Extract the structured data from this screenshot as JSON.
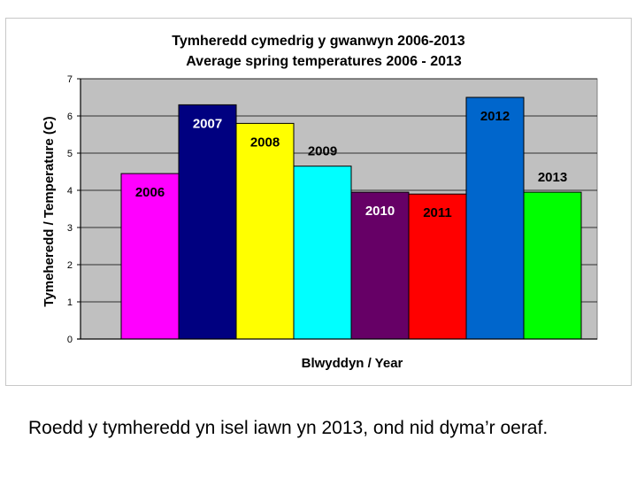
{
  "chart_data": {
    "type": "bar",
    "title_line1": "Tymheredd cymedrig y gwanwyn 2006-2013",
    "title_line2": "Average spring temperatures 2006 - 2013",
    "xlabel": "Blwyddyn / Year",
    "ylabel": "Tymeheredd / Temperature (C)",
    "ylim": [
      0,
      7
    ],
    "yticks": [
      "0",
      "1",
      "2",
      "3",
      "4",
      "5",
      "6",
      "7"
    ],
    "grid": true,
    "legend": "none",
    "plot_background": "#c0c0c0",
    "categories": [
      "2006",
      "2007",
      "2008",
      "2009",
      "2010",
      "2011",
      "2012",
      "2013"
    ],
    "values": [
      4.45,
      6.3,
      5.8,
      4.65,
      3.95,
      3.9,
      6.5,
      3.95
    ],
    "colors": [
      "#ff00ff",
      "#000080",
      "#ffff00",
      "#00ffff",
      "#660066",
      "#ff0000",
      "#0066cc",
      "#00ff00"
    ],
    "label_colors": [
      "#000000",
      "#ffffff",
      "#000000",
      "#000000",
      "#ffffff",
      "#000000",
      "#000000",
      "#000000"
    ],
    "label_placement": [
      "inside",
      "inside",
      "inside",
      "above",
      "inside",
      "inside",
      "inside",
      "above"
    ]
  },
  "caption": "Roedd y tymheredd yn isel iawn yn 2013, ond nid dyma’r oeraf."
}
